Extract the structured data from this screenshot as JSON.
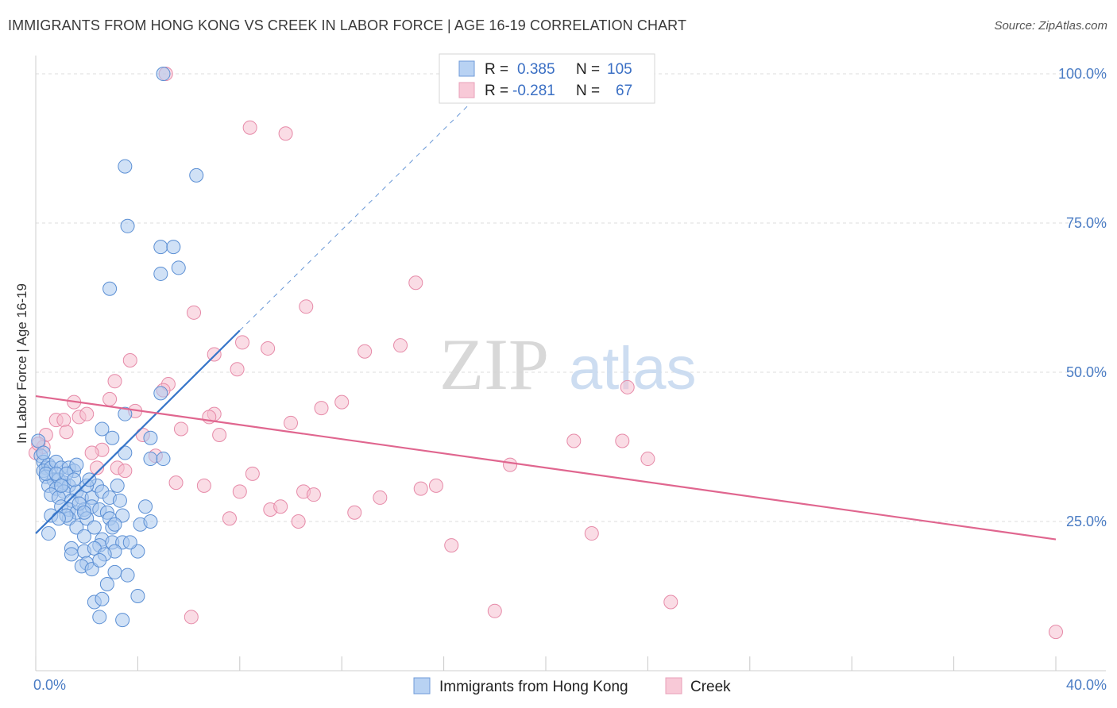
{
  "title": "IMMIGRANTS FROM HONG KONG VS CREEK IN LABOR FORCE | AGE 16-19 CORRELATION CHART",
  "source": "Source: ZipAtlas.com",
  "watermark": {
    "zip": "ZIP",
    "atlas": "atlas"
  },
  "colors": {
    "blue_fill": "#a9c8ef",
    "blue_stroke": "#5b8fd4",
    "blue_line": "#3675c9",
    "pink_fill": "#f6bfd0",
    "pink_stroke": "#e68aa8",
    "pink_line": "#e0668f",
    "tick_text": "#4a7cc4",
    "grid": "#dcdcdc"
  },
  "legend": {
    "rows": [
      {
        "r_label": "R =",
        "r_value": "0.385",
        "n_label": "N =",
        "n_value": "105"
      },
      {
        "r_label": "R =",
        "r_value": "-0.281",
        "n_label": "N =",
        "n_value": "67"
      }
    ]
  },
  "chart_data": {
    "type": "scatter",
    "title": "IMMIGRANTS FROM HONG KONG VS CREEK IN LABOR FORCE | AGE 16-19 CORRELATION CHART",
    "xlabel": "",
    "ylabel": "In Labor Force | Age 16-19",
    "xlim": [
      0,
      40
    ],
    "ylim": [
      0,
      102
    ],
    "x_tick_labels": {
      "min": "0.0%",
      "max": "40.0%"
    },
    "y_ticks": [
      25,
      50,
      75,
      100
    ],
    "y_tick_labels": [
      "25.0%",
      "50.0%",
      "75.0%",
      "100.0%"
    ],
    "grid": true,
    "legend_position": "top-center",
    "series": [
      {
        "name": "Immigrants from Hong Kong",
        "color": "#a9c8ef",
        "trend": {
          "x0": 0.0,
          "y0": 23.0,
          "x1": 8.0,
          "y1": 57.0,
          "dashed_to_x": 17.5,
          "dashed_to_y": 97.0
        },
        "points": [
          [
            5.0,
            100
          ],
          [
            3.5,
            84.5
          ],
          [
            6.3,
            83
          ],
          [
            3.6,
            74.5
          ],
          [
            4.9,
            71
          ],
          [
            5.4,
            71
          ],
          [
            4.9,
            66.5
          ],
          [
            5.6,
            67.5
          ],
          [
            2.9,
            64
          ],
          [
            4.9,
            46.5
          ],
          [
            3.5,
            43
          ],
          [
            2.6,
            40.5
          ],
          [
            3.0,
            39
          ],
          [
            4.5,
            39
          ],
          [
            4.5,
            35.5
          ],
          [
            5.0,
            35.5
          ],
          [
            3.5,
            36.5
          ],
          [
            0.1,
            38.5
          ],
          [
            0.2,
            36
          ],
          [
            0.3,
            35
          ],
          [
            0.4,
            34
          ],
          [
            0.5,
            34.5
          ],
          [
            0.3,
            33.5
          ],
          [
            0.6,
            34
          ],
          [
            0.8,
            35
          ],
          [
            1.0,
            34
          ],
          [
            1.3,
            34
          ],
          [
            1.5,
            33.5
          ],
          [
            0.4,
            32.5
          ],
          [
            0.7,
            32
          ],
          [
            0.9,
            32
          ],
          [
            1.1,
            31.5
          ],
          [
            1.3,
            31
          ],
          [
            0.5,
            31
          ],
          [
            0.8,
            30.5
          ],
          [
            1.1,
            30
          ],
          [
            1.6,
            30
          ],
          [
            0.6,
            29.5
          ],
          [
            0.9,
            29
          ],
          [
            1.4,
            28.5
          ],
          [
            1.8,
            29
          ],
          [
            2.2,
            29
          ],
          [
            2.4,
            31
          ],
          [
            3.2,
            31
          ],
          [
            2.6,
            30
          ],
          [
            2.9,
            29
          ],
          [
            3.3,
            28.5
          ],
          [
            1.0,
            27.5
          ],
          [
            1.3,
            27
          ],
          [
            1.6,
            26.5
          ],
          [
            1.9,
            27
          ],
          [
            2.2,
            27.5
          ],
          [
            2.5,
            27
          ],
          [
            2.8,
            26.5
          ],
          [
            0.6,
            26
          ],
          [
            1.3,
            25.5
          ],
          [
            2.0,
            25.5
          ],
          [
            2.9,
            25.5
          ],
          [
            3.4,
            26
          ],
          [
            1.6,
            24
          ],
          [
            2.3,
            24
          ],
          [
            3.0,
            24
          ],
          [
            3.1,
            24.5
          ],
          [
            4.1,
            24.5
          ],
          [
            4.5,
            25
          ],
          [
            0.5,
            23
          ],
          [
            2.6,
            22
          ],
          [
            1.9,
            22.5
          ],
          [
            2.5,
            21
          ],
          [
            3.0,
            21.5
          ],
          [
            3.4,
            21.5
          ],
          [
            1.4,
            20.5
          ],
          [
            1.9,
            20
          ],
          [
            2.3,
            20.5
          ],
          [
            3.1,
            20
          ],
          [
            2.7,
            19.5
          ],
          [
            1.4,
            19.5
          ],
          [
            4.0,
            20
          ],
          [
            2.0,
            18
          ],
          [
            1.8,
            17.5
          ],
          [
            2.2,
            17
          ],
          [
            2.5,
            18.5
          ],
          [
            3.1,
            16.5
          ],
          [
            3.6,
            16
          ],
          [
            2.8,
            14.5
          ],
          [
            4.0,
            12.5
          ],
          [
            2.3,
            11.5
          ],
          [
            2.6,
            12
          ],
          [
            2.5,
            9
          ],
          [
            3.4,
            8.5
          ],
          [
            0.4,
            33
          ],
          [
            0.8,
            33
          ],
          [
            1.2,
            33
          ],
          [
            1.0,
            31
          ],
          [
            1.5,
            32
          ],
          [
            2.0,
            31
          ],
          [
            1.7,
            28
          ],
          [
            1.2,
            26
          ],
          [
            0.9,
            25.5
          ],
          [
            3.7,
            21.5
          ],
          [
            4.3,
            27.5
          ],
          [
            2.1,
            32
          ],
          [
            0.3,
            36.5
          ],
          [
            1.6,
            34.5
          ],
          [
            1.9,
            26.5
          ]
        ]
      },
      {
        "name": "Creek",
        "color": "#f6bfd0",
        "trend": {
          "x0": 0.0,
          "y0": 46.0,
          "x1": 40.0,
          "y1": 22.0
        },
        "points": [
          [
            5.1,
            100
          ],
          [
            8.4,
            91
          ],
          [
            9.8,
            90
          ],
          [
            14.9,
            65
          ],
          [
            6.2,
            60
          ],
          [
            10.6,
            61
          ],
          [
            8.1,
            55
          ],
          [
            9.1,
            54
          ],
          [
            12.9,
            53.5
          ],
          [
            7.0,
            53
          ],
          [
            14.3,
            54.5
          ],
          [
            3.7,
            52
          ],
          [
            7.9,
            50.5
          ],
          [
            3.1,
            48.5
          ],
          [
            5.2,
            48
          ],
          [
            5.0,
            47
          ],
          [
            23.2,
            47.5
          ],
          [
            12.0,
            45
          ],
          [
            11.2,
            44
          ],
          [
            2.9,
            45.5
          ],
          [
            1.5,
            45
          ],
          [
            3.9,
            43.5
          ],
          [
            7.0,
            43
          ],
          [
            6.8,
            42.5
          ],
          [
            10.0,
            41.5
          ],
          [
            0.8,
            42
          ],
          [
            1.1,
            42
          ],
          [
            1.7,
            42.5
          ],
          [
            2.0,
            43
          ],
          [
            5.7,
            40.5
          ],
          [
            7.2,
            39.5
          ],
          [
            4.2,
            39.5
          ],
          [
            1.2,
            40
          ],
          [
            0.4,
            39.5
          ],
          [
            0.3,
            37.5
          ],
          [
            2.6,
            37
          ],
          [
            2.2,
            36.5
          ],
          [
            4.7,
            36
          ],
          [
            21.1,
            38.5
          ],
          [
            23.0,
            38.5
          ],
          [
            18.6,
            34.5
          ],
          [
            24.0,
            35.5
          ],
          [
            3.2,
            34
          ],
          [
            2.4,
            34
          ],
          [
            3.5,
            33.5
          ],
          [
            8.5,
            33
          ],
          [
            5.5,
            31.5
          ],
          [
            6.6,
            31
          ],
          [
            8.0,
            30
          ],
          [
            15.7,
            31
          ],
          [
            15.1,
            30.5
          ],
          [
            10.5,
            30
          ],
          [
            10.9,
            29.5
          ],
          [
            13.5,
            29
          ],
          [
            9.2,
            27
          ],
          [
            9.6,
            27.5
          ],
          [
            12.5,
            26.5
          ],
          [
            7.6,
            25.5
          ],
          [
            10.3,
            25
          ],
          [
            21.8,
            23
          ],
          [
            16.3,
            21
          ],
          [
            18.0,
            10
          ],
          [
            24.9,
            11.5
          ],
          [
            6.1,
            9
          ],
          [
            40.0,
            6.5
          ],
          [
            0.0,
            36.5
          ],
          [
            0.1,
            38
          ]
        ]
      }
    ]
  }
}
